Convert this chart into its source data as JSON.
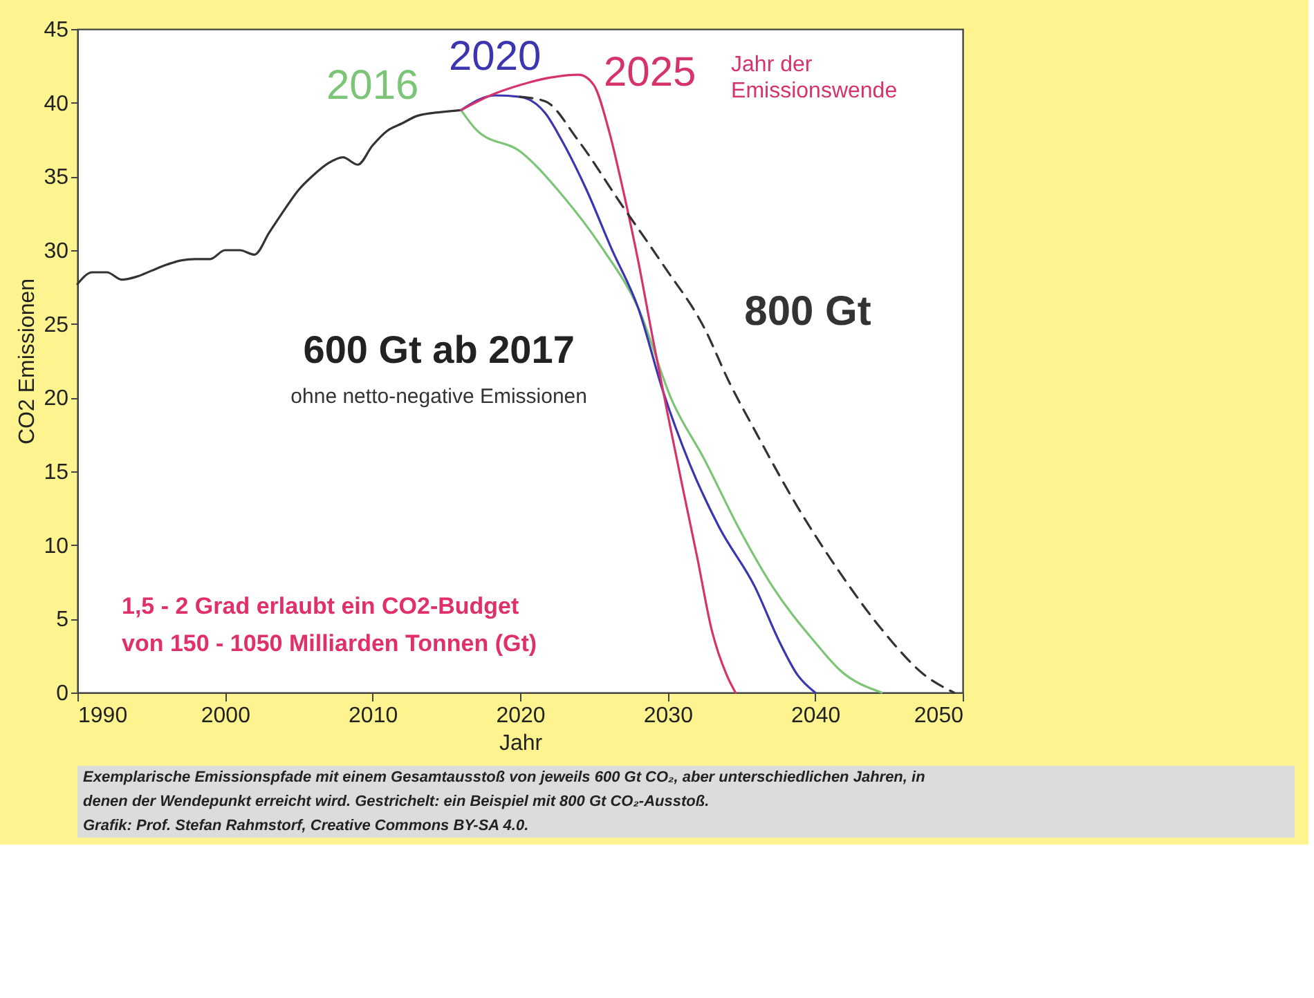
{
  "chart_data": {
    "type": "line",
    "xlabel": "Jahr",
    "ylabel": "CO2 Emissionen",
    "xlim": [
      1990,
      2050
    ],
    "xticks": [
      1990,
      2000,
      2010,
      2020,
      2030,
      2040,
      2050
    ],
    "ylim": [
      0,
      45
    ],
    "yticks": [
      0,
      5,
      10,
      15,
      20,
      25,
      30,
      35,
      40,
      45
    ],
    "grid": false,
    "marker": "none",
    "series": [
      {
        "color": "#333333",
        "x": [
          1990,
          1991,
          1992,
          1993,
          1994,
          1995,
          1996,
          1997,
          1998,
          1999,
          2000,
          2001,
          2002,
          2003,
          2004,
          2005,
          2006,
          2007,
          2008,
          2009,
          2010,
          2011,
          2012,
          2013,
          2014,
          2015,
          2016
        ],
        "values": [
          27.7,
          28.5,
          28.5,
          28.0,
          28.2,
          28.6,
          29.0,
          29.3,
          29.4,
          29.4,
          30.0,
          30.0,
          29.7,
          31.2,
          32.7,
          34.1,
          35.1,
          35.9,
          36.3,
          35.8,
          37.1,
          38.1,
          38.6,
          39.1,
          39.3,
          39.4,
          39.5
        ]
      },
      {
        "name": "2016",
        "color": "#7cc576",
        "x": [
          2016,
          2017.1,
          2020,
          2022.8,
          2025.6,
          2028,
          2030.3,
          2032.5,
          2034.8,
          2037.1,
          2040,
          2041.7,
          2044.5
        ],
        "values": [
          39.5,
          38.1,
          36.7,
          33.8,
          30.1,
          26.1,
          19.8,
          15.8,
          11.2,
          7.2,
          3.4,
          1.5,
          0
        ]
      },
      {
        "name": "2020",
        "color": "#3b35b0",
        "x": [
          2016,
          2018.3,
          2020,
          2021.7,
          2022.8,
          2024.5,
          2026.2,
          2028,
          2029.7,
          2031.5,
          2033.5,
          2035.9,
          2037.6,
          2038.8,
          2040
        ],
        "values": [
          39.5,
          40.5,
          40.4,
          39.3,
          37.5,
          34.1,
          30.1,
          26.1,
          20.4,
          15.5,
          11.2,
          7.2,
          3.4,
          1.2,
          0
        ]
      },
      {
        "name": "2025",
        "color": "#d6336c",
        "x": [
          2016,
          2018,
          2020,
          2022,
          2024,
          2025,
          2026,
          2027,
          2028,
          2029,
          2030,
          2031,
          2032,
          2033,
          2034,
          2034.6
        ],
        "values": [
          39.5,
          40.5,
          41.2,
          41.7,
          41.9,
          41.2,
          38.2,
          34.0,
          29.3,
          24.0,
          18.9,
          14.0,
          9.2,
          4.2,
          1.2,
          0
        ]
      },
      {
        "name": "800 Gt",
        "color": "#333333",
        "line_style": "dashed",
        "x": [
          2020,
          2021.7,
          2023.9,
          2026.8,
          2029.7,
          2032.5,
          2034.2,
          2035.9,
          2038.8,
          2041.7,
          2044.5,
          2047.4,
          2049.4
        ],
        "values": [
          40.4,
          40.1,
          37.5,
          33.2,
          29.0,
          24.7,
          21.0,
          17.8,
          12.6,
          8.1,
          4.3,
          1.2,
          0
        ]
      }
    ],
    "annotations": [
      "Jahr der Emissionswende",
      "600 Gt ab 2017",
      "ohne netto-negative Emissionen",
      "1,5 - 2 Grad erlaubt ein CO2-Budget",
      "von 150 - 1050 Milliarden Tonnen (Gt)",
      "Exemplarische Emissionspfade mit einem Gesamtausstoß von jeweils 600 Gt CO₂, aber unterschiedlichen Jahren, in",
      "denen der Wendepunkt erreicht wird. Gestrichelt: ein Beispiel mit 800 Gt CO₂-Ausstoß.",
      "Grafik: Prof. Stefan Rahmstorf, Creative Commons BY-SA 4.0."
    ]
  }
}
